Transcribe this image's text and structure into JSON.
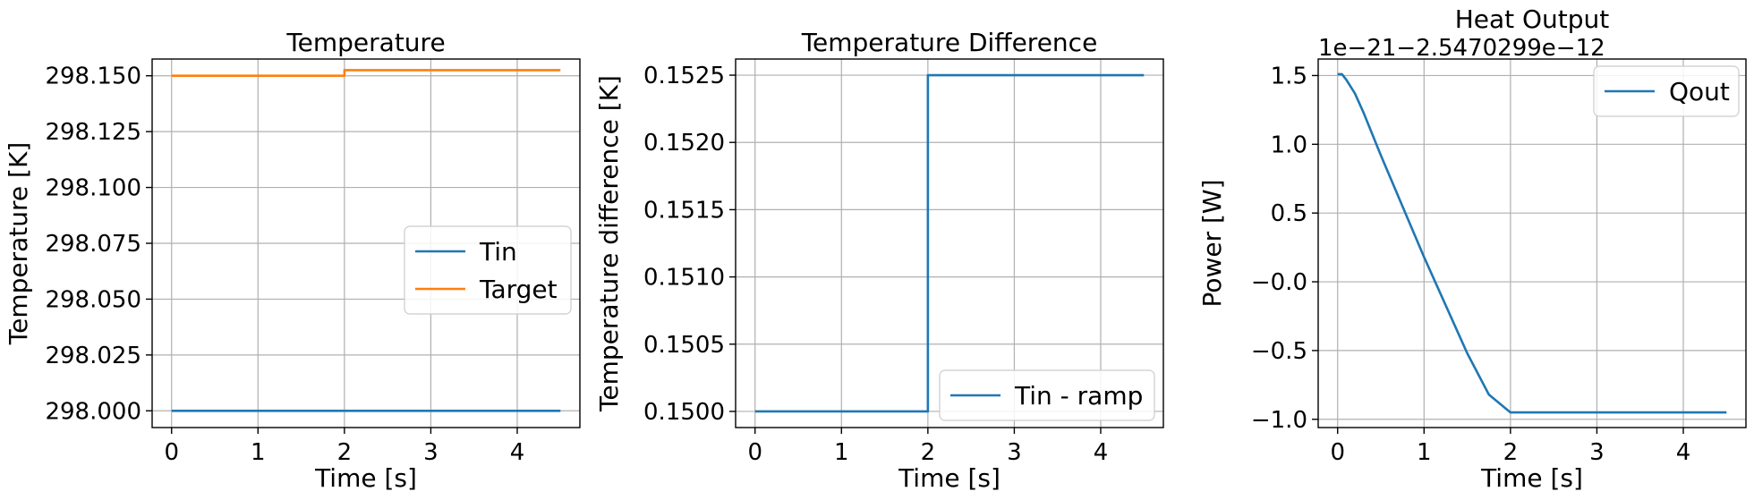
{
  "chart_data": [
    {
      "type": "line",
      "title": "Temperature",
      "xlabel": "Time [s]",
      "ylabel": "Temperature [K]",
      "xlim": [
        -0.225,
        4.725
      ],
      "ylim": [
        297.9925,
        298.1575
      ],
      "xticks": [
        0,
        1,
        2,
        3,
        4
      ],
      "xtick_labels": [
        "0",
        "1",
        "2",
        "3",
        "4"
      ],
      "yticks": [
        298.0,
        298.025,
        298.05,
        298.075,
        298.1,
        298.125,
        298.15
      ],
      "ytick_labels": [
        "298.000",
        "298.025",
        "298.050",
        "298.075",
        "298.100",
        "298.125",
        "298.150"
      ],
      "grid": true,
      "legend": "center-right",
      "series": [
        {
          "name": "Tin",
          "color": "#1f77b4",
          "x": [
            0,
            4.5
          ],
          "y": [
            298.0,
            298.0
          ]
        },
        {
          "name": "Target",
          "color": "#ff7f0e",
          "x": [
            0,
            2,
            2,
            4.5
          ],
          "y": [
            298.15,
            298.15,
            298.1525,
            298.1525
          ]
        }
      ]
    },
    {
      "type": "line",
      "title": "Temperature Difference",
      "xlabel": "Time [s]",
      "ylabel": "Temperature difference [K]",
      "xlim": [
        -0.225,
        4.725
      ],
      "ylim": [
        0.14988,
        0.15262
      ],
      "xticks": [
        0,
        1,
        2,
        3,
        4
      ],
      "xtick_labels": [
        "0",
        "1",
        "2",
        "3",
        "4"
      ],
      "yticks": [
        0.15,
        0.1505,
        0.151,
        0.1515,
        0.152,
        0.1525
      ],
      "ytick_labels": [
        "0.1500",
        "0.1505",
        "0.1510",
        "0.1515",
        "0.1520",
        "0.1525"
      ],
      "grid": true,
      "legend": "lower-right",
      "series": [
        {
          "name": "Tin - ramp",
          "color": "#1f77b4",
          "x": [
            0,
            2,
            2,
            4.5
          ],
          "y": [
            0.15,
            0.15,
            0.1525,
            0.1525
          ]
        }
      ]
    },
    {
      "type": "line",
      "title": "Heat Output",
      "offset_text": "1e−21−2.5470299e−12",
      "xlabel": "Time [s]",
      "ylabel": "Power [W]",
      "xlim": [
        -0.225,
        4.725
      ],
      "ylim": [
        -1.06,
        1.62
      ],
      "xticks": [
        0,
        1,
        2,
        3,
        4
      ],
      "xtick_labels": [
        "0",
        "1",
        "2",
        "3",
        "4"
      ],
      "yticks": [
        -1.0,
        -0.5,
        0.0,
        0.5,
        1.0,
        1.5
      ],
      "ytick_labels": [
        "−1.0",
        "−0.5",
        "−0.0",
        "0.5",
        "1.0",
        "1.5"
      ],
      "grid": true,
      "legend": "upper-right",
      "series": [
        {
          "name": "Qout",
          "color": "#1f77b4",
          "x": [
            0,
            0.05,
            0.1,
            0.2,
            0.3,
            0.5,
            0.75,
            1.0,
            1.25,
            1.5,
            1.75,
            2.0,
            4.5
          ],
          "y": [
            1.51,
            1.51,
            1.47,
            1.37,
            1.23,
            0.92,
            0.55,
            0.18,
            -0.17,
            -0.52,
            -0.82,
            -0.95,
            -0.95
          ]
        }
      ]
    }
  ]
}
